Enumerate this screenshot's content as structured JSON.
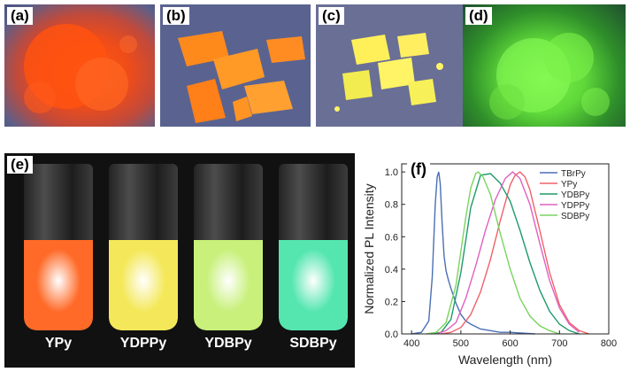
{
  "panels": {
    "a": {
      "label": "(a)"
    },
    "b": {
      "label": "(b)"
    },
    "c": {
      "label": "(c)"
    },
    "d": {
      "label": "(d)"
    },
    "e": {
      "label": "(e)",
      "vials": [
        "YPy",
        "YDPPy",
        "YDBPy",
        "SDBPy"
      ]
    },
    "f": {
      "label": "(f)"
    }
  },
  "colors": {
    "vial_ypy": "#ff6a28",
    "vial_ydppy": "#f4e85a",
    "vial_ydbpy": "#c8f07a",
    "vial_sdbpy": "#55e6b0"
  },
  "chart_data": {
    "type": "line",
    "title": "",
    "xlabel": "Wavelength (nm)",
    "ylabel": "Normalized PL Intensity",
    "xlim": [
      380,
      800
    ],
    "ylim": [
      0,
      1.05
    ],
    "xticks": [
      400,
      500,
      600,
      700,
      800
    ],
    "yticks": [
      "0.0",
      "0.2",
      "0.4",
      "0.6",
      "0.8",
      "1.0"
    ],
    "legend": "top-right",
    "series": [
      {
        "name": "TBrPy",
        "color": "#4a6fb5",
        "x": [
          400,
          420,
          435,
          442,
          448,
          452,
          455,
          458,
          462,
          466,
          470,
          475,
          480,
          490,
          500,
          510,
          520,
          540,
          560,
          580,
          600,
          650
        ],
        "y": [
          0,
          0.01,
          0.08,
          0.35,
          0.8,
          0.97,
          1.0,
          0.93,
          0.68,
          0.48,
          0.39,
          0.33,
          0.28,
          0.19,
          0.12,
          0.08,
          0.06,
          0.03,
          0.02,
          0.01,
          0.01,
          0
        ]
      },
      {
        "name": "YPy",
        "color": "#f0606a",
        "x": [
          460,
          480,
          500,
          520,
          540,
          560,
          580,
          600,
          610,
          620,
          630,
          640,
          660,
          680,
          700,
          720,
          740,
          760
        ],
        "y": [
          0,
          0.01,
          0.04,
          0.12,
          0.26,
          0.46,
          0.7,
          0.92,
          0.98,
          1.0,
          0.97,
          0.89,
          0.64,
          0.38,
          0.18,
          0.07,
          0.02,
          0
        ]
      },
      {
        "name": "YDBPy",
        "color": "#1e9a6a",
        "x": [
          440,
          460,
          480,
          500,
          520,
          540,
          560,
          580,
          600,
          620,
          640,
          660,
          680,
          700,
          720,
          740
        ],
        "y": [
          0,
          0.01,
          0.09,
          0.38,
          0.78,
          0.98,
          0.99,
          0.93,
          0.82,
          0.64,
          0.44,
          0.27,
          0.14,
          0.06,
          0.02,
          0
        ]
      },
      {
        "name": "YDPPy",
        "color": "#e060c0",
        "x": [
          450,
          470,
          490,
          510,
          530,
          550,
          570,
          590,
          605,
          620,
          640,
          660,
          680,
          700,
          720,
          740
        ],
        "y": [
          0,
          0.02,
          0.07,
          0.22,
          0.42,
          0.64,
          0.83,
          0.96,
          1.0,
          0.96,
          0.8,
          0.56,
          0.33,
          0.16,
          0.06,
          0.01
        ]
      },
      {
        "name": "SDBPy",
        "color": "#7ad460",
        "x": [
          430,
          450,
          470,
          490,
          510,
          520,
          530,
          535,
          545,
          560,
          580,
          600,
          620,
          640,
          660,
          680,
          700
        ],
        "y": [
          0,
          0.01,
          0.07,
          0.3,
          0.72,
          0.9,
          0.99,
          1.0,
          0.97,
          0.86,
          0.62,
          0.4,
          0.22,
          0.11,
          0.05,
          0.02,
          0
        ]
      }
    ]
  }
}
